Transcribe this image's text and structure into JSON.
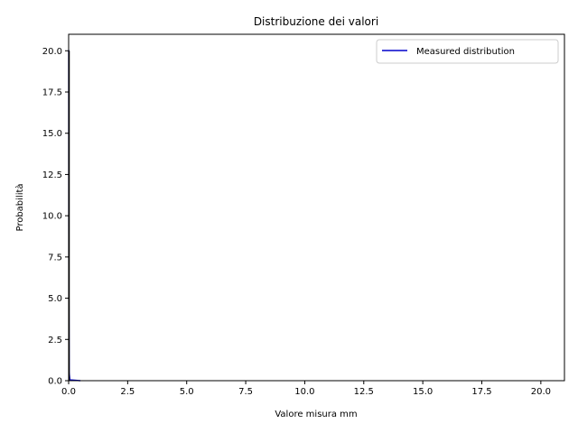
{
  "chart_data": {
    "type": "line",
    "title": "Distribuzione dei valori",
    "xlabel": "Valore misura mm",
    "ylabel": "Probabilità",
    "xlim": [
      0,
      21
    ],
    "ylim": [
      0,
      21
    ],
    "xticks": [
      "0.0",
      "2.5",
      "5.0",
      "7.5",
      "10.0",
      "12.5",
      "15.0",
      "17.5",
      "20.0"
    ],
    "yticks": [
      "0.0",
      "2.5",
      "5.0",
      "7.5",
      "10.0",
      "12.5",
      "15.0",
      "17.5",
      "20.0"
    ],
    "grid": false,
    "legend_position": "top-right",
    "series": [
      {
        "name": "Measured distribution",
        "color": "#0000cc",
        "x": [
          0.0,
          0.005,
          0.01,
          0.02,
          0.05,
          0.5
        ],
        "y": [
          20.0,
          20.0,
          5.0,
          0.5,
          0.05,
          0.0
        ]
      }
    ]
  }
}
